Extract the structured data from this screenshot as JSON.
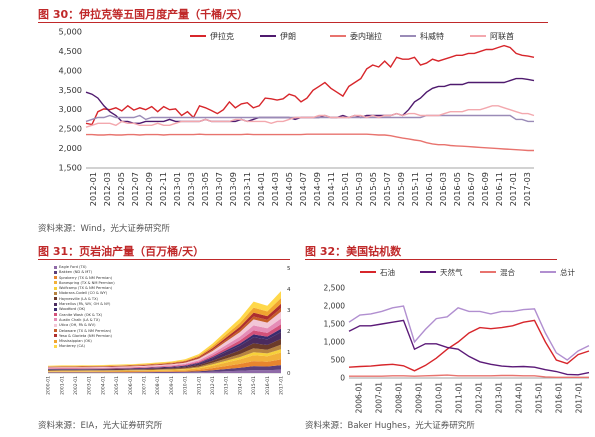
{
  "figures": {
    "fig30": {
      "label": "图 30：",
      "title": "伊拉克等五国月度产量（千桶/天）",
      "source": "资料来源：Wind，光大证券研究所"
    },
    "fig31": {
      "label": "图 31：",
      "title": "页岩油产量（百万桶/天）",
      "source": "资料来源：EIA，光大证券研究所",
      "legend": [
        "Eagle Ford (TX)",
        "Bakken (ND & MT)",
        "Spraberry (TX & NM Permian)",
        "Bonespring (TX & NM Permian)",
        "Wolfcamp (TX & NM Permian)",
        "Niobrara-Codell (CO & WY)",
        "Haynesville (LA & TX)",
        "Marcellus (PA, WV, OH & NY)",
        "Woodford (OK)",
        "Granite Wash (OK & TX)",
        "Austin Chalk (LA & TX)",
        "Utica (OH, PA & WV)",
        "Delaware (TX & NM Permian)",
        "Yeso & Glorieta (NM Permian)",
        "Mississippian (OK)",
        "Monterey (CA)"
      ]
    },
    "fig32": {
      "label": "图 32：",
      "title": "美国钻机数",
      "source": "资料来源：Baker Hughes，光大证券研究所"
    }
  },
  "colors": {
    "accent": "#c0292a",
    "iraq": "#d7262b",
    "iran": "#4f1a6e",
    "venezuela": "#e8736e",
    "kuwait": "#9a8bb7",
    "uae": "#f3a8ae",
    "oil": "#d7262b",
    "gas": "#5b1a78",
    "misc": "#e8736e",
    "total": "#b18fd0"
  },
  "chart_data": [
    {
      "id": "fig30",
      "type": "line",
      "title": "",
      "xlabel": "",
      "ylabel": "",
      "ylim": [
        1500,
        5000
      ],
      "yticks": [
        "1,500",
        "2,000",
        "2,500",
        "3,000",
        "3,500",
        "4,000",
        "4,500",
        "5,000"
      ],
      "xticks": [
        "2012-01",
        "2012-03",
        "2012-05",
        "2012-07",
        "2012-09",
        "2012-11",
        "2013-01",
        "2013-03",
        "2013-05",
        "2013-07",
        "2013-09",
        "2013-11",
        "2014-01",
        "2014-03",
        "2014-05",
        "2014-07",
        "2014-09",
        "2014-11",
        "2015-01",
        "2015-03",
        "2015-05",
        "2015-07",
        "2015-09",
        "2015-11",
        "2016-01",
        "2016-03",
        "2016-05",
        "2016-07",
        "2016-09",
        "2016-11",
        "2017-01",
        "2017-03"
      ],
      "legend_position": "top",
      "series": [
        {
          "name": "伊拉克",
          "color_key": "iraq",
          "values": [
            2650,
            2620,
            2950,
            3020,
            3000,
            3050,
            2970,
            3100,
            2990,
            3050,
            3000,
            3080,
            2950,
            3080,
            3000,
            3020,
            2850,
            2950,
            2800,
            3100,
            3050,
            2980,
            2900,
            3000,
            3200,
            3050,
            3150,
            3180,
            3050,
            3100,
            3300,
            3280,
            3250,
            3280,
            3400,
            3350,
            3200,
            3300,
            3500,
            3600,
            3700,
            3550,
            3450,
            3350,
            3600,
            3700,
            3800,
            4050,
            4150,
            4100,
            4250,
            4100,
            4350,
            4300,
            4300,
            4350,
            4150,
            4200,
            4300,
            4250,
            4300,
            4350,
            4400,
            4400,
            4450,
            4450,
            4500,
            4550,
            4550,
            4600,
            4650,
            4600,
            4450,
            4400,
            4380,
            4350
          ]
        },
        {
          "name": "伊朗",
          "color_key": "iran",
          "values": [
            3450,
            3400,
            3300,
            3100,
            2950,
            2850,
            2700,
            2700,
            2650,
            2650,
            2700,
            2700,
            2700,
            2700,
            2750,
            2700,
            2700,
            2700,
            2700,
            2700,
            2750,
            2700,
            2700,
            2700,
            2700,
            2700,
            2750,
            2700,
            2750,
            2800,
            2800,
            2800,
            2800,
            2800,
            2800,
            2750,
            2800,
            2800,
            2800,
            2800,
            2850,
            2800,
            2800,
            2850,
            2800,
            2850,
            2800,
            2850,
            2850,
            2850,
            2850,
            2850,
            2900,
            2850,
            3000,
            3200,
            3300,
            3450,
            3550,
            3600,
            3600,
            3650,
            3650,
            3650,
            3700,
            3700,
            3700,
            3700,
            3700,
            3700,
            3700,
            3750,
            3800,
            3800,
            3780,
            3750
          ]
        },
        {
          "name": "委内瑞拉",
          "color_key": "venezuela",
          "values": [
            2360,
            2360,
            2350,
            2350,
            2360,
            2350,
            2350,
            2360,
            2360,
            2350,
            2360,
            2360,
            2360,
            2350,
            2360,
            2360,
            2360,
            2360,
            2360,
            2370,
            2360,
            2360,
            2360,
            2360,
            2360,
            2360,
            2360,
            2370,
            2360,
            2360,
            2360,
            2360,
            2360,
            2360,
            2360,
            2360,
            2360,
            2370,
            2370,
            2370,
            2370,
            2370,
            2370,
            2370,
            2370,
            2370,
            2370,
            2370,
            2360,
            2350,
            2350,
            2330,
            2300,
            2270,
            2250,
            2220,
            2200,
            2150,
            2120,
            2100,
            2100,
            2080,
            2070,
            2060,
            2050,
            2040,
            2030,
            2020,
            2010,
            2000,
            1990,
            1980,
            1970,
            1960,
            1950,
            1950
          ]
        },
        {
          "name": "科威特",
          "color_key": "kuwait",
          "values": [
            2700,
            2750,
            2800,
            2800,
            2850,
            2800,
            2800,
            2800,
            2800,
            2850,
            2750,
            2800,
            2800,
            2800,
            2800,
            2800,
            2800,
            2800,
            2800,
            2800,
            2800,
            2800,
            2800,
            2800,
            2800,
            2800,
            2800,
            2800,
            2800,
            2800,
            2800,
            2800,
            2800,
            2800,
            2800,
            2800,
            2800,
            2800,
            2800,
            2800,
            2800,
            2800,
            2800,
            2800,
            2800,
            2800,
            2800,
            2800,
            2800,
            2800,
            2800,
            2800,
            2800,
            2800,
            2800,
            2800,
            2800,
            2850,
            2850,
            2850,
            2850,
            2850,
            2850,
            2850,
            2850,
            2850,
            2850,
            2850,
            2850,
            2850,
            2850,
            2850,
            2750,
            2750,
            2700,
            2700
          ]
        },
        {
          "name": "阿联酋",
          "color_key": "uae",
          "values": [
            2550,
            2600,
            2650,
            2650,
            2650,
            2600,
            2700,
            2650,
            2650,
            2600,
            2600,
            2600,
            2650,
            2600,
            2600,
            2650,
            2700,
            2700,
            2700,
            2700,
            2750,
            2700,
            2700,
            2700,
            2700,
            2750,
            2750,
            2700,
            2700,
            2700,
            2700,
            2650,
            2700,
            2700,
            2750,
            2800,
            2800,
            2800,
            2800,
            2850,
            2850,
            2800,
            2800,
            2800,
            2800,
            2850,
            2850,
            2800,
            2850,
            2800,
            2850,
            2850,
            2900,
            2850,
            2900,
            2900,
            2850,
            2850,
            2850,
            2850,
            2900,
            2950,
            2950,
            2950,
            3000,
            3000,
            3000,
            3050,
            3100,
            3100,
            3050,
            3000,
            2950,
            2900,
            2900,
            2850
          ]
        }
      ]
    },
    {
      "id": "fig31",
      "type": "area",
      "title": "",
      "ylim": [
        0,
        5
      ],
      "yticks": [
        "0",
        "1",
        "2",
        "3",
        "4",
        "5"
      ],
      "xticks": [
        "2000-01",
        "2001-01",
        "2002-01",
        "2003-01",
        "2004-01",
        "2005-01",
        "2006-01",
        "2007-01",
        "2008-01",
        "2009-01",
        "2010-01",
        "2011-01",
        "2012-01",
        "2013-01",
        "2014-01",
        "2015-01",
        "2016-01",
        "2017-01"
      ],
      "stacked_colors": [
        "#8f6aa8",
        "#5b3f7a",
        "#e8852e",
        "#f2b13a",
        "#f7d13a",
        "#b68340",
        "#6c3b2a",
        "#4a2b5e",
        "#3a2c6e",
        "#d4517a",
        "#e58cb6",
        "#f2c7d7",
        "#c55d28",
        "#ad2e2e",
        "#f0a430",
        "#ffd84a"
      ],
      "total_values": [
        0.35,
        0.36,
        0.36,
        0.37,
        0.38,
        0.4,
        0.42,
        0.45,
        0.5,
        0.55,
        0.65,
        0.9,
        1.4,
        2.0,
        2.6,
        3.4,
        3.2,
        3.9
      ]
    },
    {
      "id": "fig32",
      "type": "line",
      "title": "",
      "ylim": [
        0,
        2500
      ],
      "yticks": [
        "0",
        "500",
        "1,000",
        "1,500",
        "2,000",
        "2,500"
      ],
      "xticks": [
        "2006-01",
        "2007-01",
        "2008-01",
        "2009-01",
        "2010-01",
        "2011-01",
        "2012-01",
        "2013-01",
        "2014-01",
        "2015-01",
        "2016-01",
        "2017-01"
      ],
      "legend_position": "top",
      "series": [
        {
          "name": "石油",
          "color_key": "oil",
          "values": [
            300,
            320,
            330,
            360,
            380,
            340,
            200,
            350,
            550,
            800,
            1000,
            1250,
            1400,
            1370,
            1400,
            1450,
            1550,
            1600,
            1000,
            500,
            400,
            650,
            750
          ]
        },
        {
          "name": "天然气",
          "color_key": "gas",
          "values": [
            1300,
            1450,
            1450,
            1500,
            1550,
            1600,
            800,
            950,
            950,
            850,
            800,
            600,
            450,
            380,
            330,
            310,
            320,
            300,
            230,
            180,
            100,
            90,
            150
          ]
        },
        {
          "name": "混合",
          "color_key": "misc",
          "values": [
            50,
            50,
            50,
            50,
            60,
            60,
            50,
            60,
            70,
            80,
            60,
            60,
            60,
            60,
            70,
            70,
            60,
            60,
            30,
            20,
            20,
            20,
            20
          ]
        },
        {
          "name": "总计",
          "color_key": "total",
          "values": [
            1550,
            1750,
            1780,
            1850,
            1950,
            2000,
            1000,
            1350,
            1650,
            1700,
            1950,
            1850,
            1850,
            1780,
            1850,
            1850,
            1900,
            1920,
            1250,
            700,
            500,
            750,
            900
          ]
        }
      ]
    }
  ]
}
